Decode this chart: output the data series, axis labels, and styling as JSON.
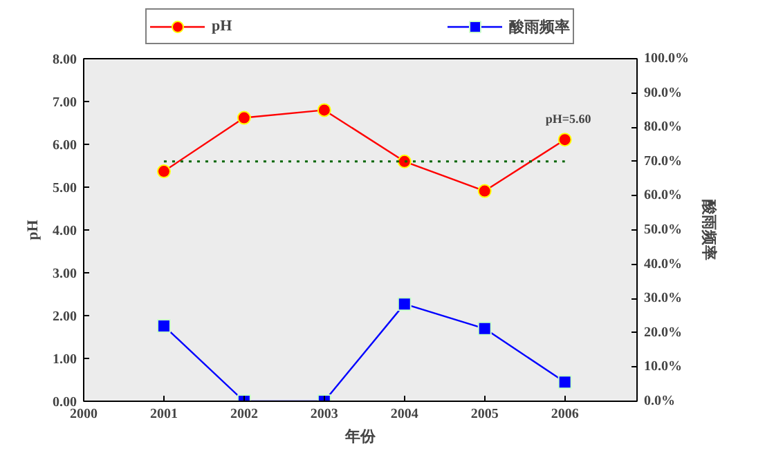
{
  "chart_data": {
    "type": "line",
    "x": [
      2001,
      2002,
      2003,
      2004,
      2005,
      2006
    ],
    "xlim": [
      2000,
      2006.9
    ],
    "xticks": [
      2000,
      2001,
      2002,
      2003,
      2004,
      2005,
      2006
    ],
    "xlabel": "年份",
    "ylabel": "pH",
    "y2label": "酸雨频率",
    "ylim": [
      0,
      8
    ],
    "yticks": [
      {
        "value": 0,
        "label": "0.00"
      },
      {
        "value": 1,
        "label": "1.00"
      },
      {
        "value": 2,
        "label": "2.00"
      },
      {
        "value": 3,
        "label": "3.00"
      },
      {
        "value": 4,
        "label": "4.00"
      },
      {
        "value": 5,
        "label": "5.00"
      },
      {
        "value": 6,
        "label": "6.00"
      },
      {
        "value": 7,
        "label": "7.00"
      },
      {
        "value": 8,
        "label": "8.00"
      }
    ],
    "y2lim": [
      0,
      100
    ],
    "y2ticks": [
      {
        "value": 0,
        "label": "0.0%"
      },
      {
        "value": 10,
        "label": "10.0%"
      },
      {
        "value": 20,
        "label": "20.0%"
      },
      {
        "value": 30,
        "label": "30.0%"
      },
      {
        "value": 40,
        "label": "40.0%"
      },
      {
        "value": 50,
        "label": "50.0%"
      },
      {
        "value": 60,
        "label": "60.0%"
      },
      {
        "value": 70,
        "label": "70.0%"
      },
      {
        "value": 80,
        "label": "80.0%"
      },
      {
        "value": 90,
        "label": "90.0%"
      },
      {
        "value": 100,
        "label": "100.0%"
      }
    ],
    "series": [
      {
        "name": "pH",
        "color": "#ff0000",
        "marker": "circle",
        "values": [
          5.37,
          6.62,
          6.8,
          5.6,
          4.91,
          6.11
        ]
      },
      {
        "name": "酸雨频率",
        "color": "#0000ff",
        "marker": "square",
        "axis": "y2",
        "values": [
          22,
          0,
          0,
          28.4,
          21.2,
          5.6
        ]
      }
    ],
    "ref_lines": [
      {
        "axis": "y",
        "value": 5.6,
        "label": "pH=5.60",
        "color": "#006600",
        "line_style": "dotted"
      }
    ],
    "grid": false,
    "legend": "top"
  }
}
